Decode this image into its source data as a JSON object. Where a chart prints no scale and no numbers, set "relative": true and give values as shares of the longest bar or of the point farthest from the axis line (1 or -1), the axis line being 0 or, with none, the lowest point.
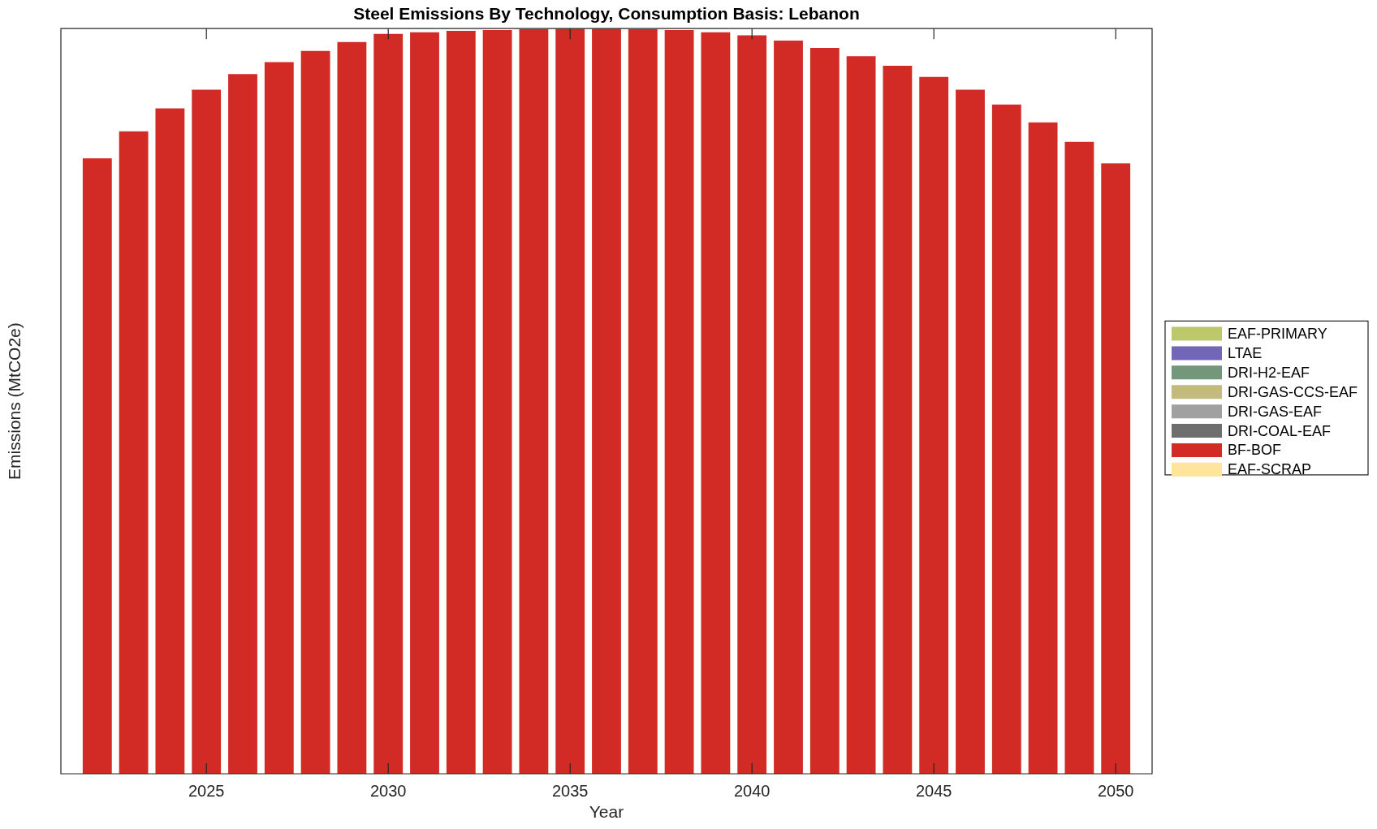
{
  "chart_data": {
    "type": "bar",
    "title": "Steel Emissions By Technology, Consumption Basis: Lebanon",
    "xlabel": "Year",
    "ylabel": "Emissions (MtCO2e)",
    "x": [
      2022,
      2023,
      2024,
      2025,
      2026,
      2027,
      2028,
      2029,
      2030,
      2031,
      2032,
      2033,
      2034,
      2035,
      2036,
      2037,
      2038,
      2039,
      2040,
      2041,
      2042,
      2043,
      2044,
      2045,
      2046,
      2047,
      2048,
      2049,
      2050
    ],
    "xlim": [
      2021,
      2051
    ],
    "xticks": [
      2025,
      2030,
      2035,
      2040,
      2045,
      2050
    ],
    "relative": true,
    "stacked": true,
    "legend": "right",
    "series": [
      {
        "name": "EAF-PRIMARY",
        "color": "#bdc86a",
        "values": [
          0,
          0,
          0,
          0,
          0,
          0,
          0,
          0,
          0,
          0,
          0,
          0,
          0,
          0,
          0,
          0,
          0,
          0,
          0,
          0,
          0,
          0,
          0,
          0,
          0,
          0,
          0,
          0,
          0
        ]
      },
      {
        "name": "LTAE",
        "color": "#7167b6",
        "values": [
          0,
          0,
          0,
          0,
          0,
          0,
          0,
          0,
          0,
          0,
          0,
          0,
          0,
          0,
          0,
          0,
          0,
          0,
          0,
          0,
          0,
          0,
          0,
          0,
          0,
          0,
          0,
          0,
          0
        ]
      },
      {
        "name": "DRI-H2-EAF",
        "color": "#72977b",
        "values": [
          0,
          0,
          0,
          0,
          0,
          0,
          0,
          0,
          0,
          0,
          0,
          0,
          0,
          0,
          0,
          0,
          0,
          0,
          0,
          0,
          0,
          0,
          0,
          0,
          0,
          0,
          0,
          0,
          0
        ]
      },
      {
        "name": "DRI-GAS-CCS-EAF",
        "color": "#c3bb7d",
        "values": [
          0,
          0,
          0,
          0,
          0,
          0,
          0,
          0,
          0,
          0,
          0,
          0,
          0,
          0,
          0,
          0,
          0,
          0,
          0,
          0,
          0,
          0,
          0,
          0,
          0,
          0,
          0,
          0,
          0
        ]
      },
      {
        "name": "DRI-GAS-EAF",
        "color": "#a0a0a0",
        "values": [
          0,
          0,
          0,
          0,
          0,
          0,
          0,
          0,
          0,
          0,
          0,
          0,
          0,
          0,
          0,
          0,
          0,
          0,
          0,
          0,
          0,
          0,
          0,
          0,
          0,
          0,
          0,
          0,
          0
        ]
      },
      {
        "name": "DRI-COAL-EAF",
        "color": "#6e6e6e",
        "values": [
          0,
          0,
          0,
          0,
          0,
          0,
          0,
          0,
          0,
          0,
          0,
          0,
          0,
          0,
          0,
          0,
          0,
          0,
          0,
          0,
          0,
          0,
          0,
          0,
          0,
          0,
          0,
          0,
          0
        ]
      },
      {
        "name": "BF-BOF",
        "color": "#d22a25",
        "values": [
          0.826,
          0.862,
          0.893,
          0.918,
          0.939,
          0.955,
          0.97,
          0.982,
          0.993,
          0.995,
          0.997,
          0.998,
          0.999,
          1.0,
          1.0,
          0.999,
          0.998,
          0.995,
          0.991,
          0.984,
          0.974,
          0.963,
          0.95,
          0.935,
          0.918,
          0.898,
          0.874,
          0.848,
          0.819
        ]
      },
      {
        "name": "EAF-SCRAP",
        "color": "#fee599",
        "values": [
          0,
          0,
          0,
          0,
          0,
          0,
          0,
          0,
          0,
          0,
          0,
          0,
          0,
          0,
          0,
          0,
          0,
          0,
          0,
          0,
          0,
          0,
          0,
          0,
          0,
          0,
          0,
          0,
          0
        ]
      }
    ]
  }
}
